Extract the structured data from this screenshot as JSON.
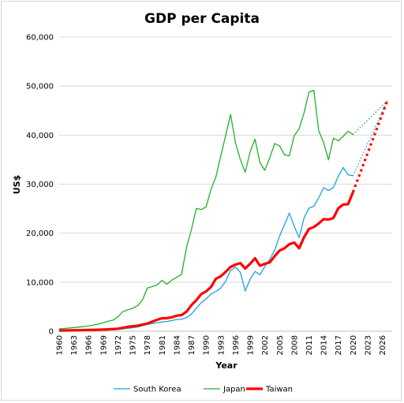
{
  "chart_data": {
    "type": "line",
    "title": "GDP per Capita",
    "xlabel": "Year",
    "ylabel": "US$",
    "ylim": [
      0,
      60000
    ],
    "xlim": [
      1960,
      2028
    ],
    "y_ticks": [
      "0",
      "10,000",
      "20,000",
      "30,000",
      "40,000",
      "50,000",
      "60,000"
    ],
    "y_tick_values": [
      0,
      10000,
      20000,
      30000,
      40000,
      50000,
      60000
    ],
    "x_ticks": [
      "1960",
      "1963",
      "1966",
      "1969",
      "1972",
      "1975",
      "1978",
      "1981",
      "1984",
      "1987",
      "1990",
      "1993",
      "1996",
      "1999",
      "2002",
      "2005",
      "2008",
      "2011",
      "2014",
      "2017",
      "2020",
      "2023",
      "2026"
    ],
    "grid": "horizontal",
    "legend_position": "bottom",
    "series": [
      {
        "name": "South Korea",
        "color": "#1aa3e0",
        "line_width": 1.3,
        "values": [
          [
            1960,
            160
          ],
          [
            1962,
            110
          ],
          [
            1964,
            120
          ],
          [
            1966,
            130
          ],
          [
            1968,
            200
          ],
          [
            1970,
            280
          ],
          [
            1972,
            330
          ],
          [
            1974,
            600
          ],
          [
            1976,
            850
          ],
          [
            1978,
            1400
          ],
          [
            1980,
            1700
          ],
          [
            1981,
            1900
          ],
          [
            1982,
            2000
          ],
          [
            1984,
            2400
          ],
          [
            1985,
            2450
          ],
          [
            1986,
            2800
          ],
          [
            1987,
            3500
          ],
          [
            1988,
            4700
          ],
          [
            1989,
            5800
          ],
          [
            1990,
            6600
          ],
          [
            1991,
            7600
          ],
          [
            1992,
            8100
          ],
          [
            1993,
            8800
          ],
          [
            1994,
            10200
          ],
          [
            1995,
            12400
          ],
          [
            1996,
            13100
          ],
          [
            1997,
            12000
          ],
          [
            1998,
            8200
          ],
          [
            1999,
            10600
          ],
          [
            2000,
            12200
          ],
          [
            2001,
            11500
          ],
          [
            2002,
            13200
          ],
          [
            2003,
            14700
          ],
          [
            2004,
            16500
          ],
          [
            2005,
            19400
          ],
          [
            2006,
            21700
          ],
          [
            2007,
            24100
          ],
          [
            2008,
            21400
          ],
          [
            2009,
            19100
          ],
          [
            2010,
            23100
          ],
          [
            2011,
            25100
          ],
          [
            2012,
            25500
          ],
          [
            2013,
            27200
          ],
          [
            2014,
            29300
          ],
          [
            2015,
            28700
          ],
          [
            2016,
            29300
          ],
          [
            2017,
            31600
          ],
          [
            2018,
            33400
          ],
          [
            2019,
            31900
          ],
          [
            2020,
            31700
          ]
        ],
        "projection": [
          [
            2020,
            31700
          ],
          [
            2027,
            47000
          ]
        ]
      },
      {
        "name": "Japan",
        "color": "#22b02a",
        "line_width": 1.3,
        "values": [
          [
            1960,
            480
          ],
          [
            1962,
            640
          ],
          [
            1964,
            840
          ],
          [
            1966,
            1060
          ],
          [
            1968,
            1450
          ],
          [
            1970,
            2040
          ],
          [
            1971,
            2270
          ],
          [
            1972,
            2950
          ],
          [
            1973,
            3990
          ],
          [
            1974,
            4360
          ],
          [
            1975,
            4660
          ],
          [
            1976,
            5200
          ],
          [
            1977,
            6340
          ],
          [
            1978,
            8820
          ],
          [
            1979,
            9100
          ],
          [
            1980,
            9460
          ],
          [
            1981,
            10360
          ],
          [
            1982,
            9580
          ],
          [
            1983,
            10420
          ],
          [
            1984,
            10980
          ],
          [
            1985,
            11580
          ],
          [
            1986,
            17110
          ],
          [
            1987,
            20750
          ],
          [
            1988,
            25050
          ],
          [
            1989,
            24810
          ],
          [
            1990,
            25360
          ],
          [
            1991,
            28920
          ],
          [
            1992,
            31460
          ],
          [
            1993,
            35770
          ],
          [
            1994,
            39930
          ],
          [
            1995,
            44200
          ],
          [
            1996,
            38440
          ],
          [
            1997,
            35020
          ],
          [
            1998,
            32430
          ],
          [
            1999,
            36600
          ],
          [
            2000,
            39170
          ],
          [
            2001,
            34410
          ],
          [
            2002,
            32820
          ],
          [
            2003,
            35390
          ],
          [
            2004,
            38300
          ],
          [
            2005,
            37810
          ],
          [
            2006,
            35990
          ],
          [
            2007,
            35780
          ],
          [
            2008,
            39880
          ],
          [
            2009,
            41300
          ],
          [
            2010,
            44510
          ],
          [
            2011,
            48760
          ],
          [
            2012,
            49150
          ],
          [
            2013,
            40900
          ],
          [
            2014,
            38470
          ],
          [
            2015,
            34960
          ],
          [
            2016,
            39380
          ],
          [
            2017,
            38830
          ],
          [
            2018,
            39730
          ],
          [
            2019,
            40800
          ],
          [
            2020,
            40100
          ]
        ],
        "projection": [
          [
            2020,
            40100
          ],
          [
            2027,
            47000
          ]
        ]
      },
      {
        "name": "Taiwan",
        "color": "#ff0000",
        "line_width": 3.2,
        "values": [
          [
            1960,
            150
          ],
          [
            1962,
            170
          ],
          [
            1964,
            210
          ],
          [
            1966,
            250
          ],
          [
            1968,
            310
          ],
          [
            1970,
            390
          ],
          [
            1972,
            520
          ],
          [
            1974,
            900
          ],
          [
            1976,
            1130
          ],
          [
            1978,
            1560
          ],
          [
            1980,
            2340
          ],
          [
            1981,
            2650
          ],
          [
            1982,
            2650
          ],
          [
            1983,
            2850
          ],
          [
            1984,
            3170
          ],
          [
            1985,
            3290
          ],
          [
            1986,
            3990
          ],
          [
            1987,
            5320
          ],
          [
            1988,
            6330
          ],
          [
            1989,
            7580
          ],
          [
            1990,
            8120
          ],
          [
            1991,
            9020
          ],
          [
            1992,
            10720
          ],
          [
            1993,
            11210
          ],
          [
            1994,
            12110
          ],
          [
            1995,
            13130
          ],
          [
            1996,
            13590
          ],
          [
            1997,
            13900
          ],
          [
            1998,
            12790
          ],
          [
            1999,
            13770
          ],
          [
            2000,
            14880
          ],
          [
            2001,
            13370
          ],
          [
            2002,
            13750
          ],
          [
            2003,
            14040
          ],
          [
            2004,
            15320
          ],
          [
            2005,
            16460
          ],
          [
            2006,
            16930
          ],
          [
            2007,
            17760
          ],
          [
            2008,
            18080
          ],
          [
            2009,
            16930
          ],
          [
            2010,
            19180
          ],
          [
            2011,
            20870
          ],
          [
            2012,
            21260
          ],
          [
            2013,
            21970
          ],
          [
            2014,
            22870
          ],
          [
            2015,
            22780
          ],
          [
            2016,
            23090
          ],
          [
            2017,
            25080
          ],
          [
            2018,
            25840
          ],
          [
            2019,
            25910
          ],
          [
            2020,
            28380
          ]
        ],
        "projection": [
          [
            2020,
            28380
          ],
          [
            2027,
            47000
          ]
        ]
      }
    ]
  }
}
